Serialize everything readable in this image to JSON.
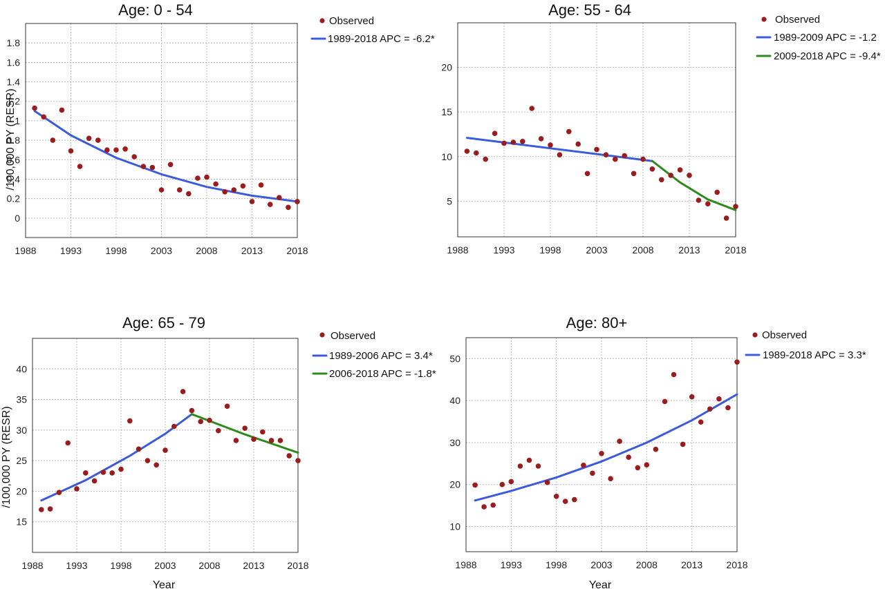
{
  "x_axis_label": "Year",
  "y_axis_label": "/100,000 PY (RESR)",
  "colors": {
    "observed": "#9b1c1c",
    "segment1": "#3b5bdb",
    "segment2": "#2f8a1c"
  },
  "chart_data": [
    {
      "type": "scatter",
      "title": "Age: 0 - 54",
      "xlabel": "",
      "ylabel": "/100,000 PY (RESR)",
      "xlim": [
        1988,
        2018
      ],
      "ylim": [
        -0.2,
        2.0
      ],
      "xticks": [
        1988,
        1993,
        1998,
        2003,
        2008,
        2013,
        2018
      ],
      "yticks": [
        0,
        0.2,
        0.4,
        0.6,
        0.8,
        1,
        1.2,
        1.4,
        1.6,
        1.8
      ],
      "ytick_labels": [
        "0",
        "0.2",
        "0.4",
        "0.6",
        "0.8",
        "1",
        "1.2",
        "1.4",
        "1.6",
        "1.8"
      ],
      "legend": [
        "Observed",
        "1989-2018 APC = -6.2*"
      ],
      "observed": {
        "x": [
          1989,
          1990,
          1991,
          1992,
          1993,
          1994,
          1995,
          1996,
          1997,
          1998,
          1999,
          2000,
          2001,
          2002,
          2003,
          2004,
          2005,
          2006,
          2007,
          2008,
          2009,
          2010,
          2011,
          2012,
          2013,
          2014,
          2015,
          2016,
          2017,
          2018
        ],
        "y": [
          1.13,
          1.04,
          0.8,
          1.11,
          0.69,
          0.53,
          0.82,
          0.8,
          0.7,
          0.7,
          0.71,
          0.63,
          0.53,
          0.52,
          0.29,
          0.55,
          0.29,
          0.25,
          0.41,
          0.42,
          0.35,
          0.27,
          0.29,
          0.33,
          0.17,
          0.34,
          0.14,
          0.21,
          0.11,
          0.17
        ]
      },
      "segments": [
        {
          "name": "1989-2018 APC = -6.2*",
          "color_key": "segment1",
          "x": [
            1989,
            1993,
            1998,
            2003,
            2008,
            2013,
            2018
          ],
          "y": [
            1.1,
            0.85,
            0.62,
            0.45,
            0.32,
            0.23,
            0.17
          ]
        }
      ]
    },
    {
      "type": "scatter",
      "title": "Age: 55 - 64",
      "xlabel": "",
      "ylabel": "",
      "xlim": [
        1988,
        2018
      ],
      "ylim": [
        1,
        25
      ],
      "xticks": [
        1988,
        1993,
        1998,
        2003,
        2008,
        2013,
        2018
      ],
      "yticks": [
        5,
        10,
        15,
        20
      ],
      "ytick_labels": [
        "5",
        "10",
        "15",
        "20"
      ],
      "legend": [
        "Observed",
        "1989-2009 APC = -1.2",
        "2009-2018 APC = -9.4*"
      ],
      "observed": {
        "x": [
          1989,
          1990,
          1991,
          1992,
          1993,
          1994,
          1995,
          1996,
          1997,
          1998,
          1999,
          2000,
          2001,
          2002,
          2003,
          2004,
          2005,
          2006,
          2007,
          2008,
          2009,
          2010,
          2011,
          2012,
          2013,
          2014,
          2015,
          2016,
          2017,
          2018
        ],
        "y": [
          10.6,
          10.4,
          9.7,
          12.6,
          11.5,
          11.6,
          11.7,
          15.4,
          12.0,
          11.3,
          10.2,
          12.8,
          11.4,
          8.1,
          10.8,
          10.2,
          9.7,
          10.1,
          8.1,
          9.7,
          8.6,
          7.4,
          7.9,
          8.5,
          7.9,
          5.1,
          4.7,
          6.0,
          3.1,
          4.4
        ]
      },
      "segments": [
        {
          "name": "1989-2009 APC = -1.2",
          "color_key": "segment1",
          "x": [
            1989,
            2009
          ],
          "y": [
            12.1,
            9.5
          ]
        },
        {
          "name": "2009-2018 APC = -9.4*",
          "color_key": "segment2",
          "x": [
            2009,
            2012,
            2015,
            2018
          ],
          "y": [
            9.5,
            7.1,
            5.2,
            4.0
          ]
        }
      ]
    },
    {
      "type": "scatter",
      "title": "Age: 65 - 79",
      "xlabel": "Year",
      "ylabel": "/100,000 PY (RESR)",
      "xlim": [
        1988,
        2018
      ],
      "ylim": [
        10,
        45
      ],
      "xticks": [
        1988,
        1993,
        1998,
        2003,
        2008,
        2013,
        2018
      ],
      "yticks": [
        15,
        20,
        25,
        30,
        35,
        40
      ],
      "ytick_labels": [
        "15",
        "20",
        "25",
        "30",
        "35",
        "40"
      ],
      "legend": [
        "Observed",
        "1989-2006 APC = 3.4*",
        "2006-2018 APC = -1.8*"
      ],
      "observed": {
        "x": [
          1989,
          1990,
          1991,
          1992,
          1993,
          1994,
          1995,
          1996,
          1997,
          1998,
          1999,
          2000,
          2001,
          2002,
          2003,
          2004,
          2005,
          2006,
          2007,
          2008,
          2009,
          2010,
          2011,
          2012,
          2013,
          2014,
          2015,
          2016,
          2017,
          2018
        ],
        "y": [
          17.0,
          17.1,
          19.8,
          27.9,
          20.4,
          23.0,
          21.7,
          23.1,
          23.0,
          23.6,
          31.5,
          26.9,
          25.0,
          24.3,
          26.7,
          30.6,
          36.3,
          33.2,
          31.4,
          31.6,
          29.9,
          33.9,
          28.3,
          30.3,
          28.5,
          29.7,
          28.3,
          28.3,
          25.8,
          25.0
        ]
      },
      "segments": [
        {
          "name": "1989-2006 APC = 3.4*",
          "color_key": "segment1",
          "x": [
            1989,
            1994,
            1999,
            2003,
            2006
          ],
          "y": [
            18.5,
            21.8,
            25.8,
            29.4,
            32.6
          ]
        },
        {
          "name": "2006-2018 APC = -1.8*",
          "color_key": "segment2",
          "x": [
            2006,
            2012,
            2018
          ],
          "y": [
            32.6,
            29.3,
            26.3
          ]
        }
      ]
    },
    {
      "type": "scatter",
      "title": "Age: 80+",
      "xlabel": "Year",
      "ylabel": "",
      "xlim": [
        1988,
        2018
      ],
      "ylim": [
        4,
        55
      ],
      "xticks": [
        1988,
        1993,
        1998,
        2003,
        2008,
        2013,
        2018
      ],
      "yticks": [
        10,
        20,
        30,
        40,
        50
      ],
      "ytick_labels": [
        "10",
        "20",
        "30",
        "40",
        "50"
      ],
      "legend": [
        "Observed",
        "1989-2018 APC = 3.3*"
      ],
      "observed": {
        "x": [
          1989,
          1990,
          1991,
          1992,
          1993,
          1994,
          1995,
          1996,
          1997,
          1998,
          1999,
          2000,
          2001,
          2002,
          2003,
          2004,
          2005,
          2006,
          2007,
          2008,
          2009,
          2010,
          2011,
          2012,
          2013,
          2014,
          2015,
          2016,
          2017,
          2018
        ],
        "y": [
          19.9,
          14.7,
          15.1,
          20.0,
          20.7,
          24.4,
          25.8,
          24.4,
          20.5,
          17.2,
          16.0,
          16.4,
          24.6,
          22.7,
          27.4,
          21.4,
          30.3,
          26.5,
          24.0,
          24.7,
          28.4,
          39.8,
          46.2,
          29.6,
          40.9,
          34.9,
          38.0,
          40.4,
          38.3,
          49.2
        ]
      },
      "segments": [
        {
          "name": "1989-2018 APC = 3.3*",
          "color_key": "segment1",
          "x": [
            1989,
            1993,
            1998,
            2003,
            2008,
            2013,
            2018
          ],
          "y": [
            16.2,
            18.5,
            21.7,
            25.5,
            30.0,
            35.3,
            41.5
          ]
        }
      ]
    }
  ]
}
